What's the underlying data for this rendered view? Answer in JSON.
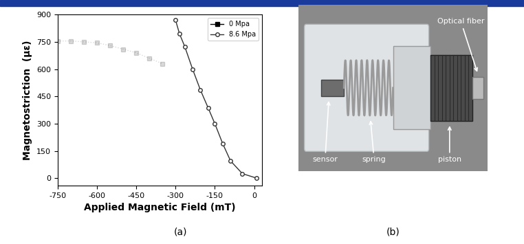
{
  "chart_data": {
    "type": "line",
    "x_label": "Applied Magnetic Field (mT)",
    "y_label": "Magnetostriction  (με)",
    "annotations": [
      "(a)"
    ],
    "xlim": [
      -750,
      30
    ],
    "xticks": [
      -750,
      -600,
      -450,
      -300,
      -150,
      0
    ],
    "ylim": [
      -40,
      900
    ],
    "yticks": [
      0,
      150,
      300,
      450,
      600,
      750,
      900
    ],
    "legend": "upper right",
    "series": [
      {
        "name": "0 Mpa",
        "color": "#000000",
        "marker": "square",
        "line_style": "dotted",
        "x": [
          -750,
          -700,
          -650,
          -600,
          -550,
          -500,
          -450,
          -400,
          -350
        ],
        "values": [
          755,
          755,
          750,
          745,
          730,
          710,
          690,
          660,
          630
        ]
      },
      {
        "name": "8.6 Mpa",
        "color": "#333333",
        "marker": "circle",
        "line_style": "solid",
        "x": [
          -300,
          -285,
          -265,
          -235,
          -205,
          -175,
          -150,
          -120,
          -90,
          -45,
          10
        ],
        "values": [
          870,
          795,
          725,
          600,
          485,
          385,
          300,
          190,
          95,
          25,
          0
        ]
      }
    ]
  },
  "photo": {
    "caption": "(b)",
    "labels": {
      "sensor": "sensor",
      "spring": "spring",
      "piston": "piston",
      "fiber": "Optical fiber"
    }
  }
}
